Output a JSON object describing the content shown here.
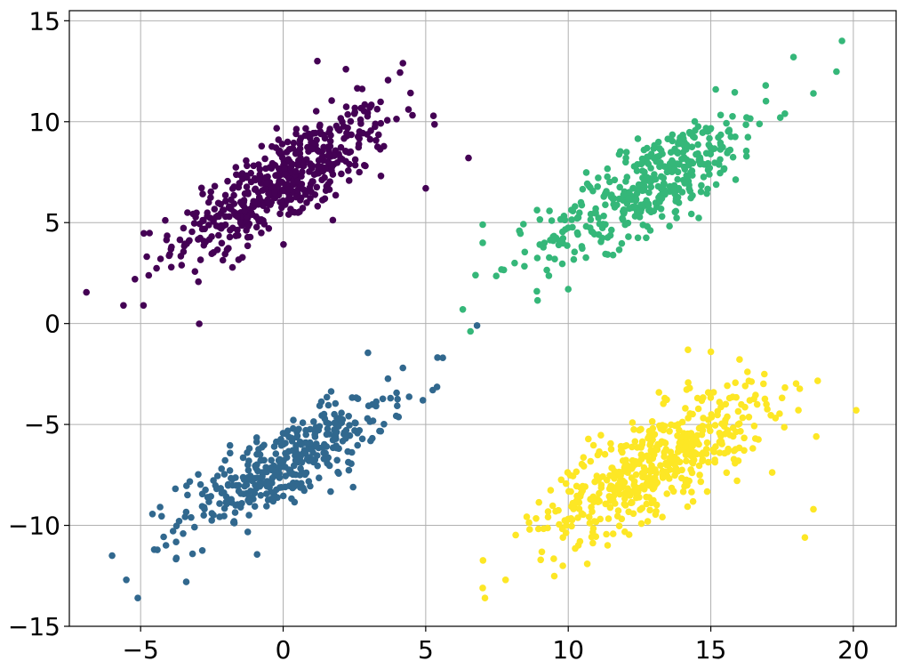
{
  "chart_data": {
    "type": "scatter",
    "title": "",
    "xlabel": "",
    "ylabel": "",
    "xlim": [
      -7.5,
      21.5
    ],
    "ylim": [
      -15,
      15.5
    ],
    "grid": true,
    "legend": "none",
    "x_ticks": [
      {
        "value": -5,
        "label": "−5"
      },
      {
        "value": 0,
        "label": "0"
      },
      {
        "value": 5,
        "label": "5"
      },
      {
        "value": 10,
        "label": "10"
      },
      {
        "value": 15,
        "label": "15"
      },
      {
        "value": 20,
        "label": "20"
      }
    ],
    "y_ticks": [
      {
        "value": -15,
        "label": "−15"
      },
      {
        "value": -10,
        "label": "−10"
      },
      {
        "value": -5,
        "label": "−5"
      },
      {
        "value": 0,
        "label": "0"
      },
      {
        "value": 5,
        "label": "5"
      },
      {
        "value": 10,
        "label": "10"
      },
      {
        "value": 15,
        "label": "15"
      }
    ],
    "clusters": [
      {
        "color": "#440154",
        "center": [
          0.0,
          7.0
        ],
        "spread": [
          1.9,
          1.5
        ],
        "slope": 1.0,
        "count": 520,
        "extreme_points": [
          [
            -5.6,
            0.9
          ],
          [
            -4.9,
            0.9
          ],
          [
            -5.2,
            2.2
          ],
          [
            4.2,
            12.9
          ],
          [
            1.2,
            13.0
          ],
          [
            6.5,
            8.2
          ],
          [
            5.0,
            6.7
          ],
          [
            2.2,
            12.6
          ]
        ]
      },
      {
        "color": "#31688e",
        "center": [
          0.0,
          -7.0
        ],
        "spread": [
          1.8,
          1.3
        ],
        "slope": 0.95,
        "count": 380,
        "extreme_points": [
          [
            -6.0,
            -11.5
          ],
          [
            -5.1,
            -13.6
          ],
          [
            -5.5,
            -12.7
          ],
          [
            5.6,
            -1.7
          ],
          [
            6.8,
            -0.1
          ],
          [
            4.2,
            -2.2
          ],
          [
            4.9,
            -3.8
          ],
          [
            -3.4,
            -12.8
          ]
        ]
      },
      {
        "color": "#35b779",
        "center": [
          13.0,
          7.0
        ],
        "spread": [
          2.0,
          1.5
        ],
        "slope": 1.0,
        "count": 400,
        "extreme_points": [
          [
            6.3,
            0.7
          ],
          [
            8.9,
            1.6
          ],
          [
            19.6,
            14.0
          ],
          [
            17.9,
            13.2
          ],
          [
            18.6,
            11.4
          ],
          [
            7.0,
            4.0
          ],
          [
            7.0,
            4.9
          ],
          [
            10.0,
            1.7
          ]
        ]
      },
      {
        "color": "#fde725",
        "center": [
          13.0,
          -7.0
        ],
        "spread": [
          2.0,
          1.6
        ],
        "slope": 0.95,
        "count": 520,
        "extreme_points": [
          [
            7.0,
            -13.1
          ],
          [
            7.8,
            -12.7
          ],
          [
            20.1,
            -4.3
          ],
          [
            18.6,
            -9.2
          ],
          [
            18.7,
            -5.6
          ],
          [
            15.0,
            -1.4
          ],
          [
            14.2,
            -1.3
          ],
          [
            18.3,
            -10.6
          ]
        ]
      }
    ]
  }
}
